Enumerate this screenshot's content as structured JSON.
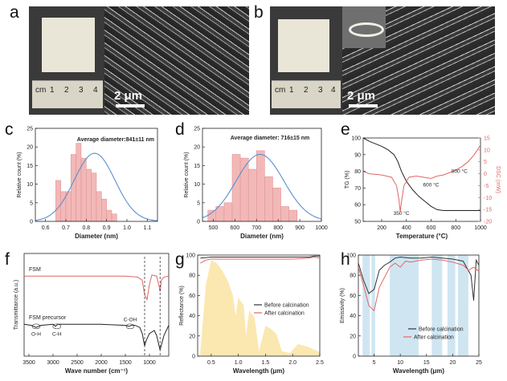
{
  "panel_labels": {
    "a": "a",
    "b": "b",
    "c": "c",
    "d": "d",
    "e": "e",
    "f": "f",
    "g": "g",
    "h": "h"
  },
  "photos": {
    "a_scale": "2 μm",
    "b_scale": "2 μm",
    "ruler_ticks": [
      "cm",
      "1",
      "2",
      "3",
      "4"
    ]
  },
  "chart_data": [
    {
      "id": "c",
      "type": "bar",
      "title": "Average diameter:841±11 nm",
      "xlabel": "Diameter (nm)",
      "ylabel": "Relative count (%)",
      "xlim": [
        0.55,
        1.15
      ],
      "ylim": [
        0,
        25
      ],
      "xticks": [
        "0.6",
        "0.7",
        "0.8",
        "0.9",
        "1.0",
        "1.1"
      ],
      "yticks": [
        "0",
        "5",
        "10",
        "15",
        "20",
        "25"
      ],
      "bin_start": 0.65,
      "bin_width": 0.025,
      "values": [
        11,
        8,
        8,
        18,
        21,
        17,
        14,
        13,
        8,
        6,
        3,
        2
      ],
      "fit": {
        "mean": 0.841,
        "sigma": 0.1,
        "peak": 18.3
      }
    },
    {
      "id": "d",
      "type": "bar",
      "title": "Average diameter: 716±15 nm",
      "xlabel": "Diameter (nm)",
      "ylabel": "Relative count (%)",
      "xlim": [
        450,
        1000
      ],
      "ylim": [
        0,
        25
      ],
      "xticks": [
        "500",
        "600",
        "700",
        "800",
        "900",
        "1000"
      ],
      "yticks": [
        "0",
        "5",
        "10",
        "15",
        "20",
        "25"
      ],
      "bin_start": 475,
      "bin_width": 37.5,
      "values": [
        3,
        4,
        5,
        18,
        17,
        14,
        19,
        12,
        9,
        4,
        3
      ],
      "fit": {
        "mean": 716,
        "sigma": 110,
        "peak": 18
      }
    },
    {
      "id": "e",
      "type": "line",
      "xlabel": "Temperature (°C)",
      "ylabel": "TG (%)",
      "y2label": "DSC (mW)",
      "xlim": [
        50,
        1000
      ],
      "ylim": [
        50,
        100
      ],
      "y2lim": [
        -20,
        15
      ],
      "xticks": [
        "200",
        "400",
        "600",
        "800",
        "1000"
      ],
      "yticks": [
        "50",
        "60",
        "70",
        "80",
        "90",
        "100"
      ],
      "y2ticks": [
        "-20",
        "-15",
        "-10",
        "-5",
        "0",
        "5",
        "10",
        "15"
      ],
      "annotations": [
        "350 °C",
        "600 °C",
        "800 °C"
      ],
      "series": [
        {
          "name": "TG",
          "axis": "left",
          "x": [
            50,
            100,
            150,
            200,
            250,
            300,
            330,
            360,
            400,
            450,
            500,
            550,
            600,
            650,
            700,
            800,
            900,
            1000
          ],
          "y": [
            100,
            98,
            96.5,
            95,
            93,
            90,
            86,
            80,
            74,
            69,
            65,
            62,
            59,
            57,
            56.5,
            56.5,
            56.5,
            56.5
          ]
        },
        {
          "name": "DSC",
          "axis": "right",
          "x": [
            50,
            100,
            200,
            280,
            320,
            340,
            350,
            360,
            380,
            420,
            480,
            540,
            600,
            650,
            700,
            750,
            800,
            850,
            900,
            950,
            1000
          ],
          "y": [
            1,
            0,
            -0.5,
            -1.5,
            -5,
            -11,
            -16,
            -12,
            -5,
            -1.5,
            -1,
            -1.5,
            -2,
            -1,
            -0.5,
            0.5,
            1.5,
            3,
            5,
            8,
            12
          ]
        }
      ]
    },
    {
      "id": "f",
      "type": "line",
      "xlabel": "Wave number (cm⁻¹)",
      "ylabel": "Transmittance (a.u.)",
      "xlim": [
        3600,
        600
      ],
      "xticks": [
        "3500",
        "3000",
        "2500",
        "2000",
        "1500",
        "1000"
      ],
      "annotations": [
        "O-H",
        "C-H",
        "C-OH"
      ],
      "series": [
        {
          "name": "FSM",
          "x": [
            3600,
            3000,
            2500,
            2000,
            1500,
            1250,
            1150,
            1100,
            1050,
            1000,
            950,
            850,
            800,
            780,
            750,
            700,
            600
          ],
          "y": [
            0.78,
            0.78,
            0.78,
            0.78,
            0.78,
            0.77,
            0.74,
            0.6,
            0.55,
            0.7,
            0.79,
            0.78,
            0.68,
            0.63,
            0.74,
            0.77,
            0.78
          ]
        },
        {
          "name": "FSM precursor",
          "x": [
            3600,
            3450,
            3350,
            3250,
            3000,
            2950,
            2900,
            2500,
            2000,
            1500,
            1420,
            1380,
            1300,
            1200,
            1150,
            1100,
            1070,
            1000,
            900,
            850,
            800,
            780,
            700,
            600
          ],
          "y": [
            0.31,
            0.3,
            0.28,
            0.3,
            0.31,
            0.29,
            0.31,
            0.31,
            0.31,
            0.3,
            0.29,
            0.3,
            0.3,
            0.28,
            0.22,
            0.1,
            0.15,
            0.22,
            0.25,
            0.2,
            0.1,
            0.06,
            0.2,
            0.3
          ]
        }
      ]
    },
    {
      "id": "g",
      "type": "line",
      "xlabel": "Wavelength (μm)",
      "ylabel": "Reflectance (%)",
      "xlim": [
        0.25,
        2.5
      ],
      "ylim": [
        0,
        100
      ],
      "xticks": [
        "0.5",
        "1.0",
        "1.5",
        "2.0",
        "2.5"
      ],
      "yticks": [
        "0",
        "20",
        "40",
        "60",
        "80",
        "100"
      ],
      "legend": [
        "Before calcination",
        "After calcination"
      ],
      "series": [
        {
          "name": "Before calcination",
          "x": [
            0.3,
            0.5,
            1.0,
            1.5,
            2.0,
            2.3,
            2.4,
            2.5
          ],
          "y": [
            97,
            98,
            98,
            98,
            98,
            98,
            99,
            99
          ]
        },
        {
          "name": "After calcination",
          "x": [
            0.3,
            0.4,
            0.5,
            1.0,
            1.5,
            2.0,
            2.3,
            2.4,
            2.5
          ],
          "y": [
            92,
            95,
            96,
            96,
            96,
            96,
            97,
            98,
            97
          ]
        }
      ]
    },
    {
      "id": "h",
      "type": "line",
      "xlabel": "Wavelength (μm)",
      "ylabel": "Emissivity (%)",
      "xlim": [
        2,
        25
      ],
      "ylim": [
        0,
        100
      ],
      "xticks": [
        "5",
        "10",
        "15",
        "20",
        "25"
      ],
      "yticks": [
        "0",
        "20",
        "40",
        "60",
        "80",
        "100"
      ],
      "legend": [
        "Before calcination",
        "After calcination"
      ],
      "series": [
        {
          "name": "Before calcination",
          "x": [
            2,
            3,
            4,
            5,
            6,
            7,
            8,
            9,
            10,
            12,
            14,
            16,
            18,
            20,
            22,
            23.5,
            24,
            24.5,
            25
          ],
          "y": [
            92,
            75,
            62,
            66,
            85,
            90,
            93,
            97,
            98,
            97,
            97,
            98,
            97,
            96,
            94,
            80,
            55,
            95,
            90
          ]
        },
        {
          "name": "After calcination",
          "x": [
            2,
            3,
            4,
            5,
            6,
            7,
            8,
            9,
            10,
            11,
            12,
            14,
            16,
            18,
            20,
            22,
            23,
            24,
            25
          ],
          "y": [
            88,
            70,
            50,
            45,
            68,
            78,
            88,
            92,
            88,
            94,
            93,
            95,
            96,
            95,
            93,
            90,
            85,
            88,
            84
          ]
        }
      ]
    }
  ]
}
